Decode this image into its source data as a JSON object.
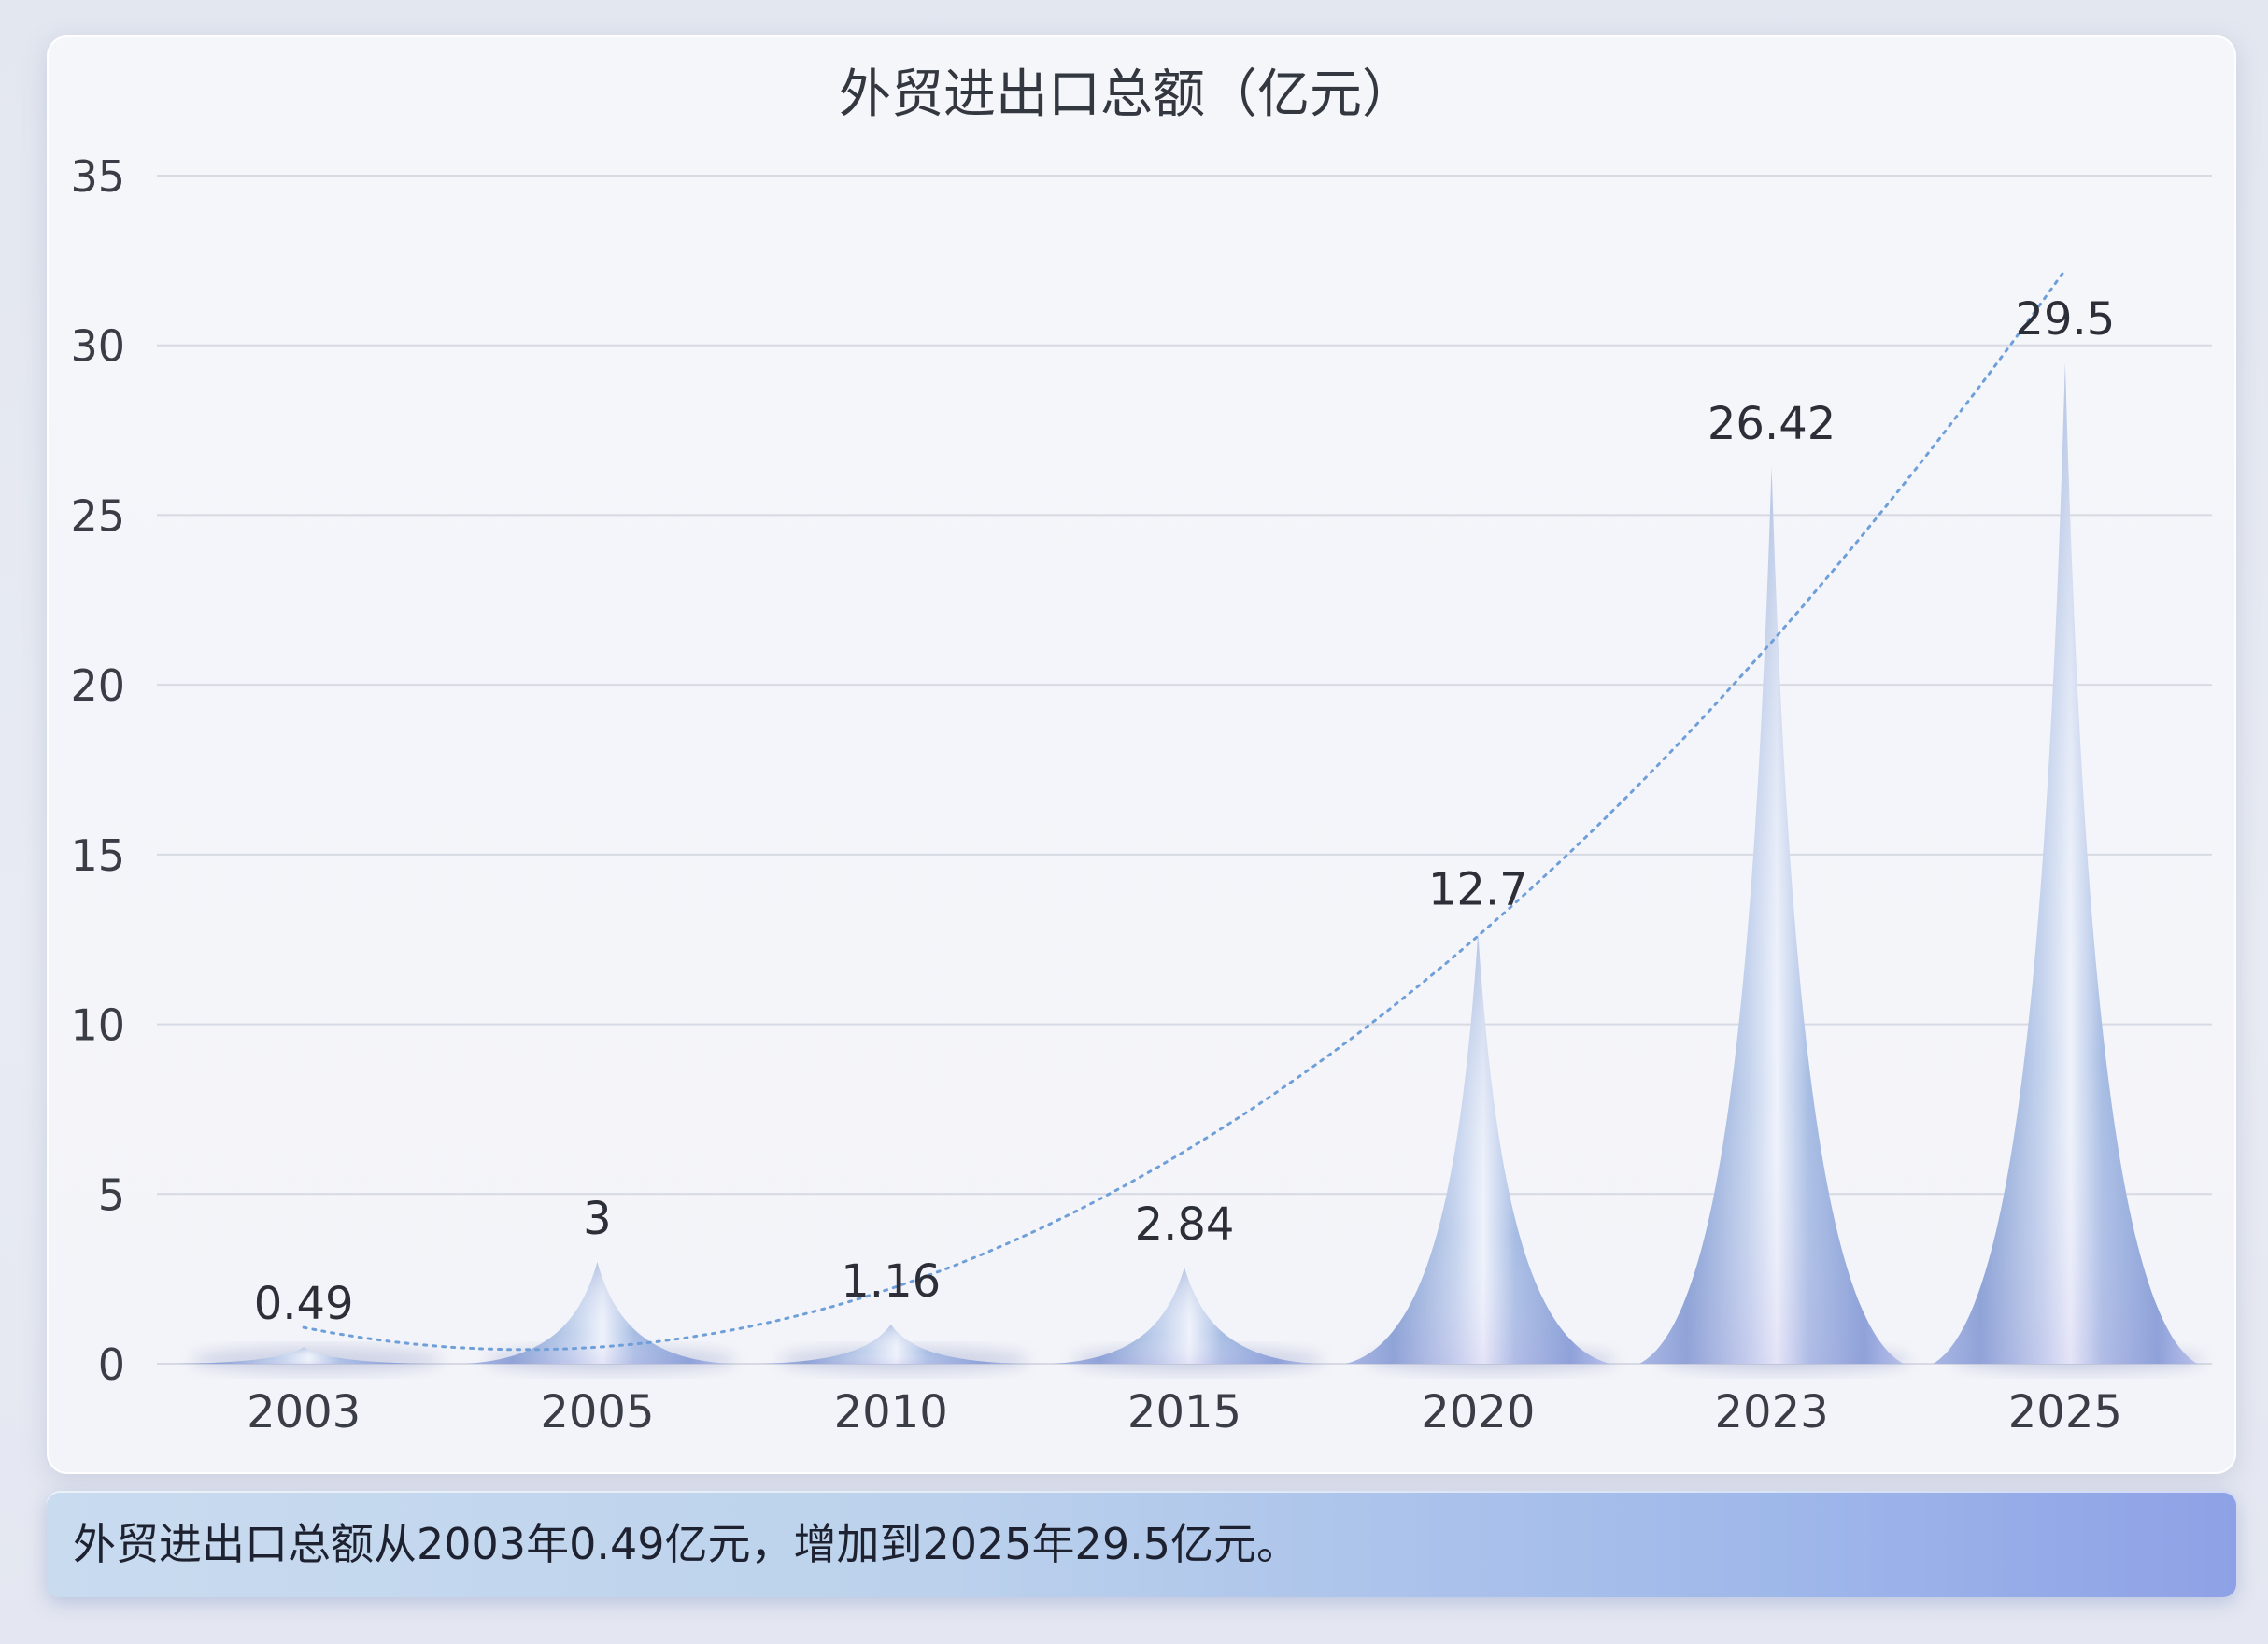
{
  "chart_data": {
    "type": "bar",
    "title": "外贸进出口总额（亿元）",
    "xlabel": "",
    "ylabel": "",
    "categories": [
      "2003",
      "2005",
      "2010",
      "2015",
      "2020",
      "2023",
      "2025"
    ],
    "values": [
      0.49,
      3,
      1.16,
      2.84,
      12.7,
      26.42,
      29.5
    ],
    "data_labels": [
      "0.49",
      "3",
      "1.16",
      "2.84",
      "12.7",
      "26.42",
      "29.5"
    ],
    "ylim": [
      0,
      35
    ],
    "yticks": [
      0,
      5,
      10,
      15,
      20,
      25,
      30,
      35
    ],
    "grid": true,
    "bar_shape": "spike",
    "trendline": "dotted curve",
    "colors": {
      "bar": "#8fa8d8",
      "bar_highlight": "#e8eef9",
      "trend": "#6f9fd8",
      "grid": "#d7dae3"
    }
  },
  "caption": "外贸进出口总额从2003年0.49亿元，增加到2025年29.5亿元。"
}
